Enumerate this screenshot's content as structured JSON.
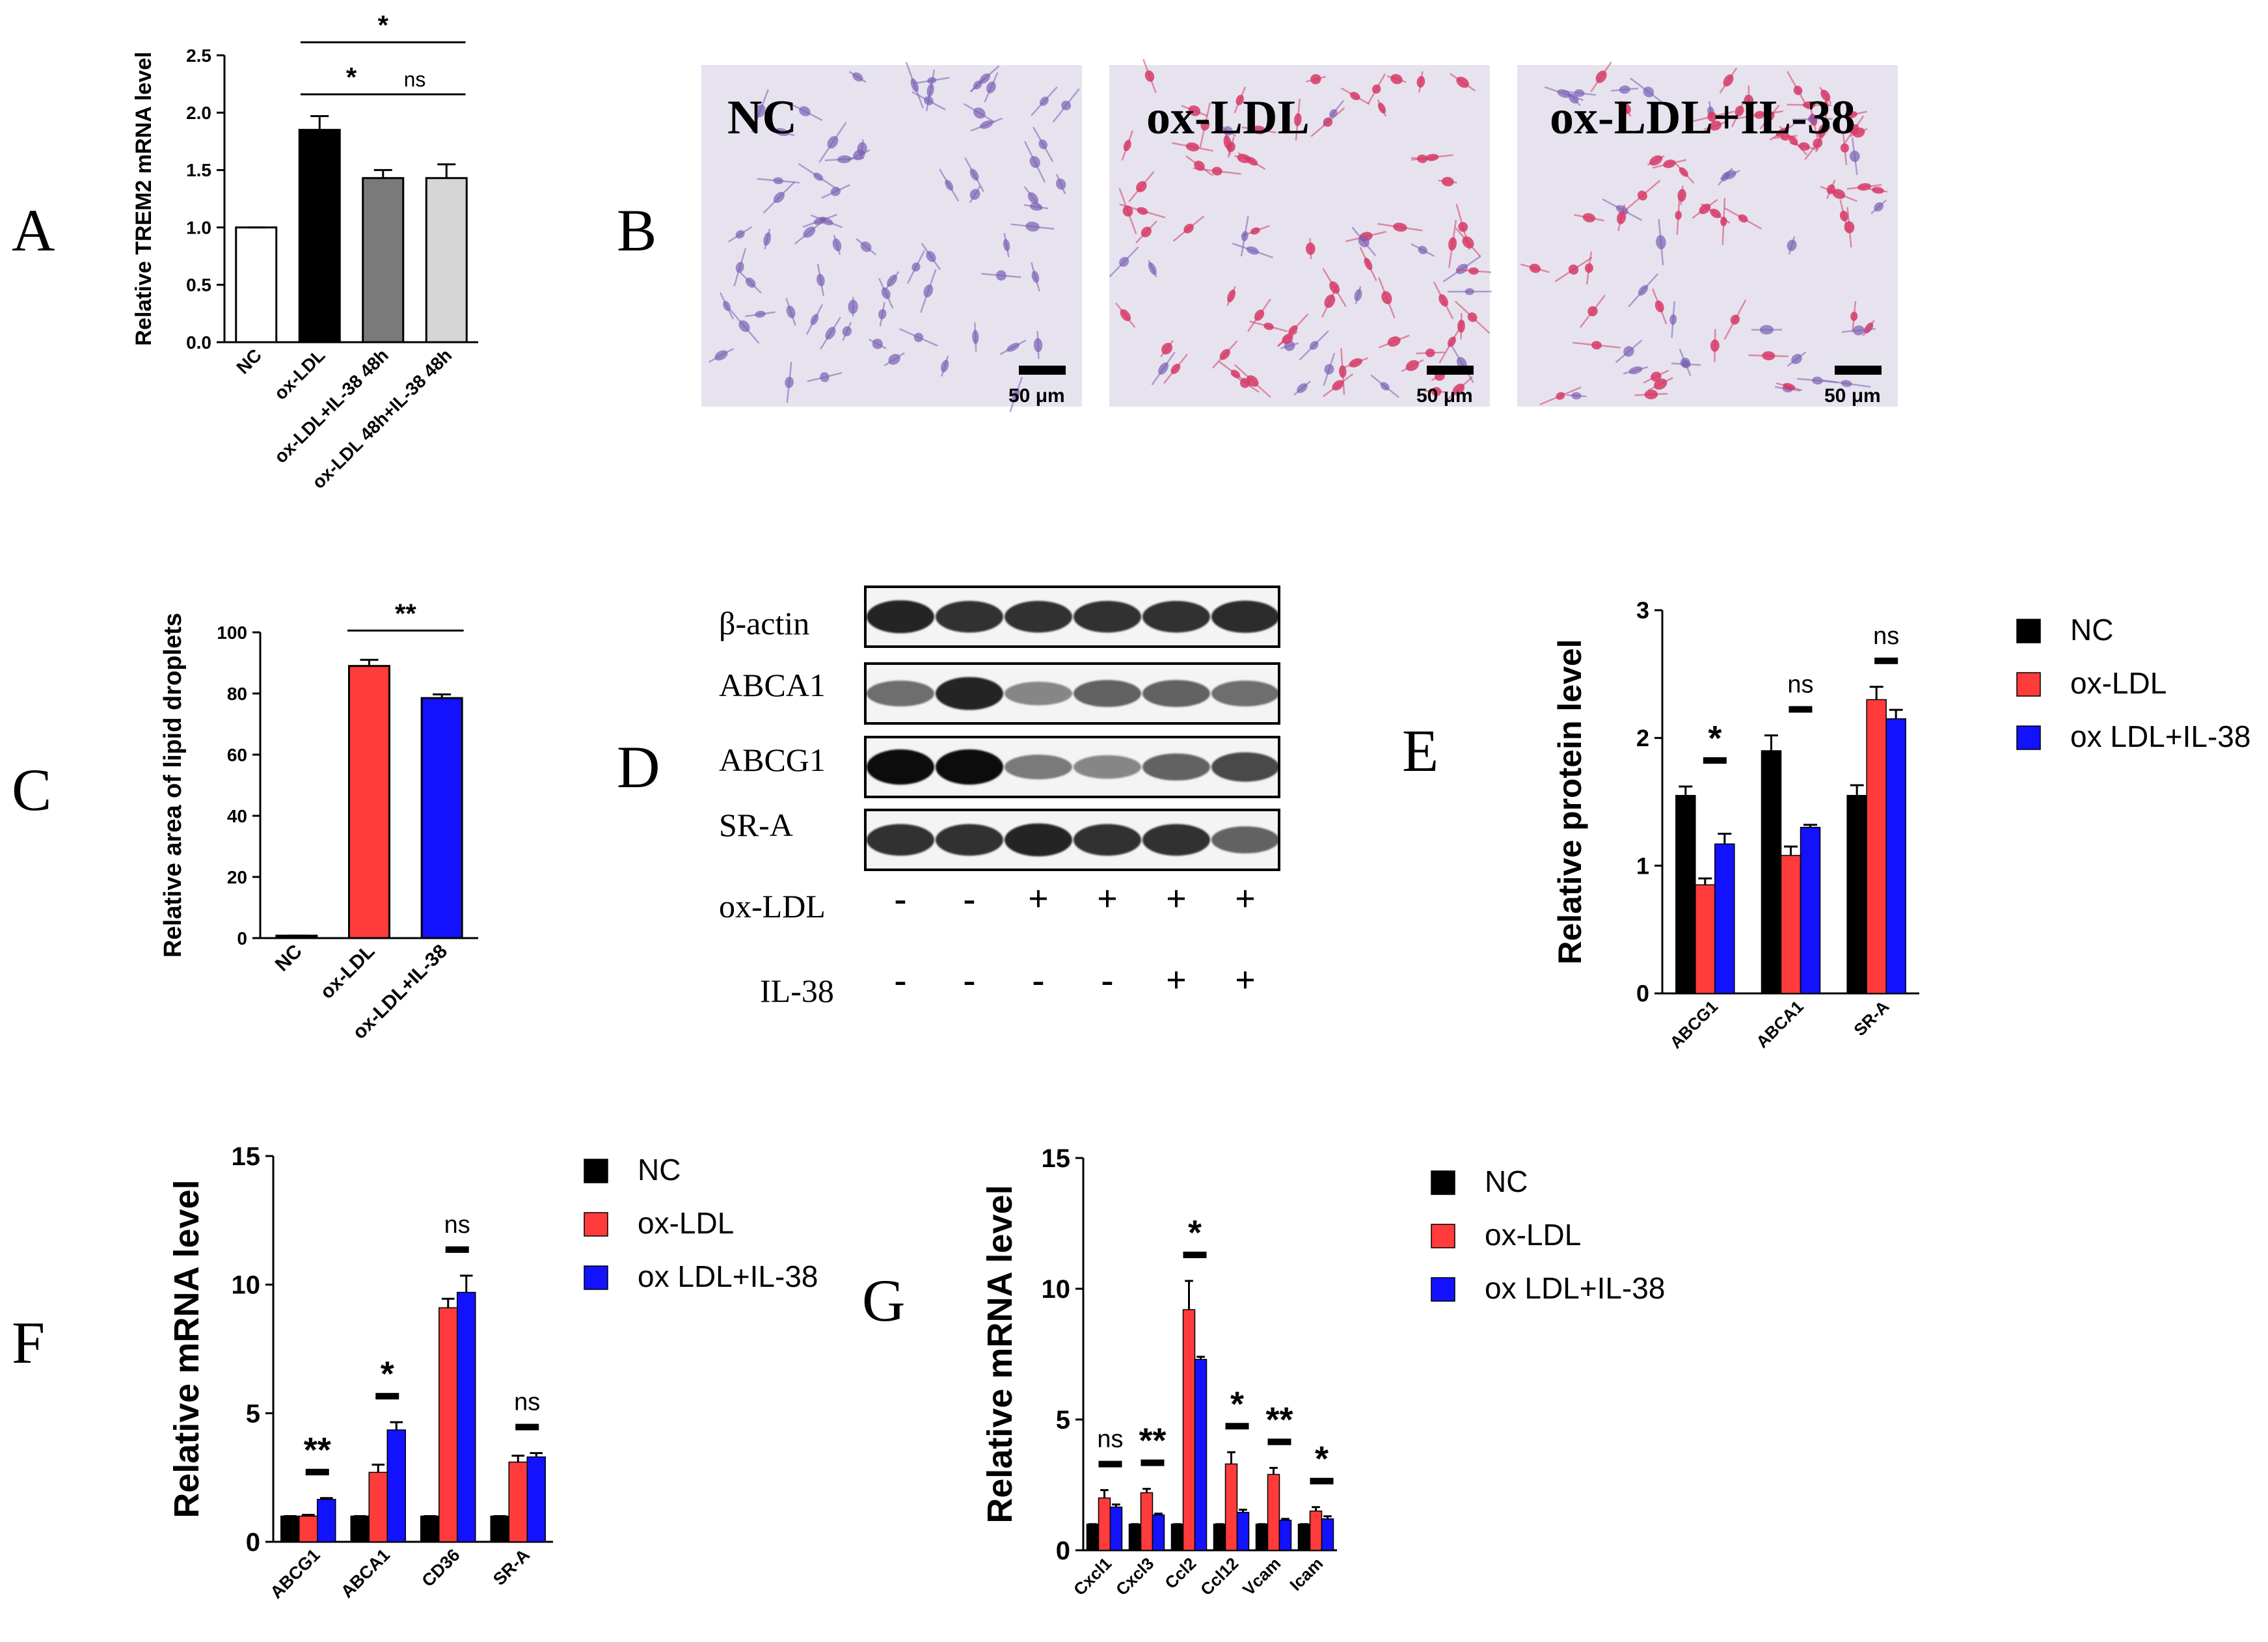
{
  "colors": {
    "nc": "#000000",
    "oxldl": "#ff3b3b",
    "il38": "#1212ff",
    "grayDark": "#7a7a7a",
    "grayLight": "#d6d6d6",
    "micrographBg": "#e4e0ee",
    "cellBlue": "#7a5fb3",
    "cellRed": "#d63a66"
  },
  "panel_letters": [
    "A",
    "B",
    "C",
    "D",
    "E",
    "F",
    "G"
  ],
  "micrographs": {
    "labels": [
      "NC",
      "ox-LDL",
      "ox-LDL+IL-38"
    ],
    "scale_bar": "50 μm"
  },
  "western_blot": {
    "bands": [
      "β-actin",
      "ABCA1",
      "ABCG1",
      "SR-A"
    ],
    "conditions": [
      {
        "label": "ox-LDL",
        "signs": [
          "-",
          "-",
          "+",
          "+",
          "+",
          "+"
        ]
      },
      {
        "label": "IL-38",
        "signs": [
          "-",
          "-",
          "-",
          "-",
          "+",
          "+"
        ]
      }
    ],
    "intensity": [
      [
        0.85,
        0.8,
        0.8,
        0.8,
        0.8,
        0.82
      ],
      [
        0.55,
        0.85,
        0.45,
        0.6,
        0.6,
        0.55
      ],
      [
        0.95,
        0.95,
        0.5,
        0.45,
        0.6,
        0.7
      ],
      [
        0.8,
        0.8,
        0.85,
        0.8,
        0.8,
        0.6
      ]
    ]
  },
  "chart_data": [
    {
      "panel": "A",
      "type": "bar",
      "ylabel": "Relative TREM2 mRNA level",
      "ylim": [
        0,
        2.5
      ],
      "yticks": [
        "0.0",
        "0.5",
        "1.0",
        "1.5",
        "2.0",
        "2.5"
      ],
      "categories": [
        "NC",
        "ox-LDL",
        "ox-LDL+IL-38 48h",
        "ox-LDL 48h+IL-38 48h"
      ],
      "values": [
        1.0,
        1.85,
        1.43,
        1.43
      ],
      "errors": [
        0,
        0.12,
        0.07,
        0.12
      ],
      "fill_colors": [
        "#ffffff",
        "#000000",
        "#7a7a7a",
        "#d6d6d6"
      ],
      "significance": [
        {
          "label": "*",
          "from": 1,
          "to": 3
        },
        {
          "label": "*",
          "from": 1,
          "to": 2
        },
        {
          "label": "ns",
          "from": 2,
          "to": 3
        }
      ]
    },
    {
      "panel": "C",
      "type": "bar",
      "ylabel": "Relative area of lipid droplets",
      "ylim": [
        0,
        100
      ],
      "yticks": [
        "0",
        "20",
        "40",
        "60",
        "80",
        "100"
      ],
      "categories": [
        "NC",
        "ox-LDL",
        "ox-LDL+IL-38"
      ],
      "values": [
        0.8,
        89,
        78.5
      ],
      "errors": [
        0,
        2,
        1.2
      ],
      "fill_colors": [
        "#000000",
        "#ff3b3b",
        "#1212ff"
      ],
      "significance": [
        {
          "label": "**",
          "from": 1,
          "to": 2
        }
      ]
    },
    {
      "panel": "E",
      "type": "bar",
      "ylabel": "Relative protein level",
      "ylim": [
        0,
        3
      ],
      "yticks": [
        "0",
        "1",
        "2",
        "3"
      ],
      "categories": [
        "ABCG1",
        "ABCA1",
        "SR-A"
      ],
      "series": [
        {
          "name": "NC",
          "values": [
            1.55,
            1.9,
            1.55
          ],
          "errors": [
            0.07,
            0.12,
            0.08
          ]
        },
        {
          "name": "ox-LDL",
          "values": [
            0.85,
            1.08,
            2.3
          ],
          "errors": [
            0.05,
            0.07,
            0.1
          ]
        },
        {
          "name": "ox LDL+IL-38",
          "values": [
            1.17,
            1.3,
            2.15
          ],
          "errors": [
            0.08,
            0.02,
            0.07
          ]
        }
      ],
      "significance": [
        "*",
        "ns",
        "ns"
      ]
    },
    {
      "panel": "F",
      "type": "bar",
      "ylabel": "Relative mRNA level",
      "ylim": [
        0,
        15
      ],
      "yticks": [
        "0",
        "5",
        "10",
        "15"
      ],
      "categories": [
        "ABCG1",
        "ABCA1",
        "CD36",
        "SR-A"
      ],
      "series": [
        {
          "name": "NC",
          "values": [
            1,
            1,
            1,
            1
          ],
          "errors": [
            0,
            0,
            0,
            0
          ]
        },
        {
          "name": "ox-LDL",
          "values": [
            1.0,
            2.7,
            9.1,
            3.1
          ],
          "errors": [
            0.05,
            0.3,
            0.35,
            0.25
          ]
        },
        {
          "name": "ox LDL+IL-38",
          "values": [
            1.65,
            4.35,
            9.7,
            3.3
          ],
          "errors": [
            0.05,
            0.3,
            0.65,
            0.15
          ]
        }
      ],
      "significance": [
        "**",
        "*",
        "ns",
        "ns"
      ]
    },
    {
      "panel": "G",
      "type": "bar",
      "ylabel": "Relative mRNA level",
      "ylim": [
        0,
        15
      ],
      "yticks": [
        "0",
        "5",
        "10",
        "15"
      ],
      "categories": [
        "Cxcl1",
        "Cxcl3",
        "Ccl2",
        "Ccl12",
        "Vcam",
        "Icam"
      ],
      "series": [
        {
          "name": "NC",
          "values": [
            1,
            1,
            1,
            1,
            1,
            1
          ],
          "errors": [
            0,
            0,
            0,
            0,
            0,
            0
          ]
        },
        {
          "name": "ox-LDL",
          "values": [
            2.0,
            2.2,
            9.2,
            3.3,
            2.9,
            1.5
          ],
          "errors": [
            0.3,
            0.15,
            1.1,
            0.45,
            0.25,
            0.15
          ]
        },
        {
          "name": "ox LDL+IL-38",
          "values": [
            1.65,
            1.35,
            7.3,
            1.45,
            1.15,
            1.2
          ],
          "errors": [
            0.1,
            0.05,
            0.1,
            0.1,
            0.05,
            0.1
          ]
        }
      ],
      "significance": [
        "ns",
        "**",
        "*",
        "*",
        "**",
        "*"
      ]
    }
  ]
}
